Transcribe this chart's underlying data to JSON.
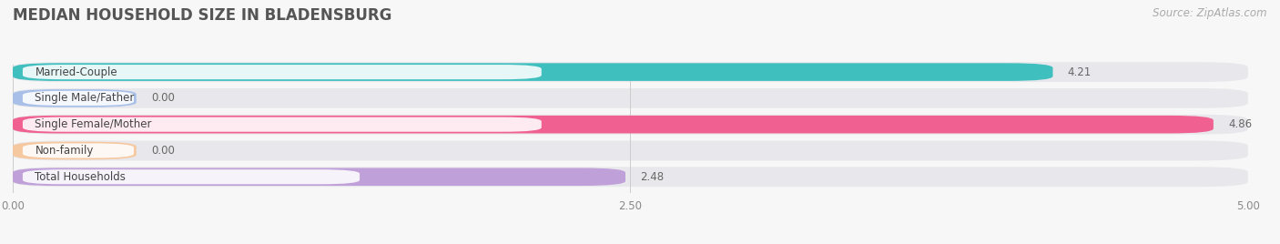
{
  "title": "MEDIAN HOUSEHOLD SIZE IN BLADENSBURG",
  "source": "Source: ZipAtlas.com",
  "categories": [
    "Married-Couple",
    "Single Male/Father",
    "Single Female/Mother",
    "Non-family",
    "Total Households"
  ],
  "values": [
    4.21,
    0.0,
    4.86,
    0.0,
    2.48
  ],
  "display_values": [
    "4.21",
    "0.00",
    "4.86",
    "0.00",
    "2.48"
  ],
  "bar_colors": [
    "#40bfbf",
    "#a8c0e8",
    "#f06090",
    "#f5c8a0",
    "#c0a0d8"
  ],
  "bar_bg_color": "#e8e8ec",
  "zero_bar_width": 0.5,
  "xlim": [
    0,
    5.0
  ],
  "xticks": [
    0.0,
    2.5,
    5.0
  ],
  "xtick_labels": [
    "0.00",
    "2.50",
    "5.00"
  ],
  "background_color": "#f7f7f7",
  "row_bg_colors": [
    "#f0f0f0",
    "#f8f8f8",
    "#f0f0f0",
    "#f8f8f8",
    "#f0f0f0"
  ],
  "title_fontsize": 12,
  "label_fontsize": 8.5,
  "value_fontsize": 8.5,
  "source_fontsize": 8.5,
  "bar_height": 0.68,
  "bar_gap": 0.32
}
